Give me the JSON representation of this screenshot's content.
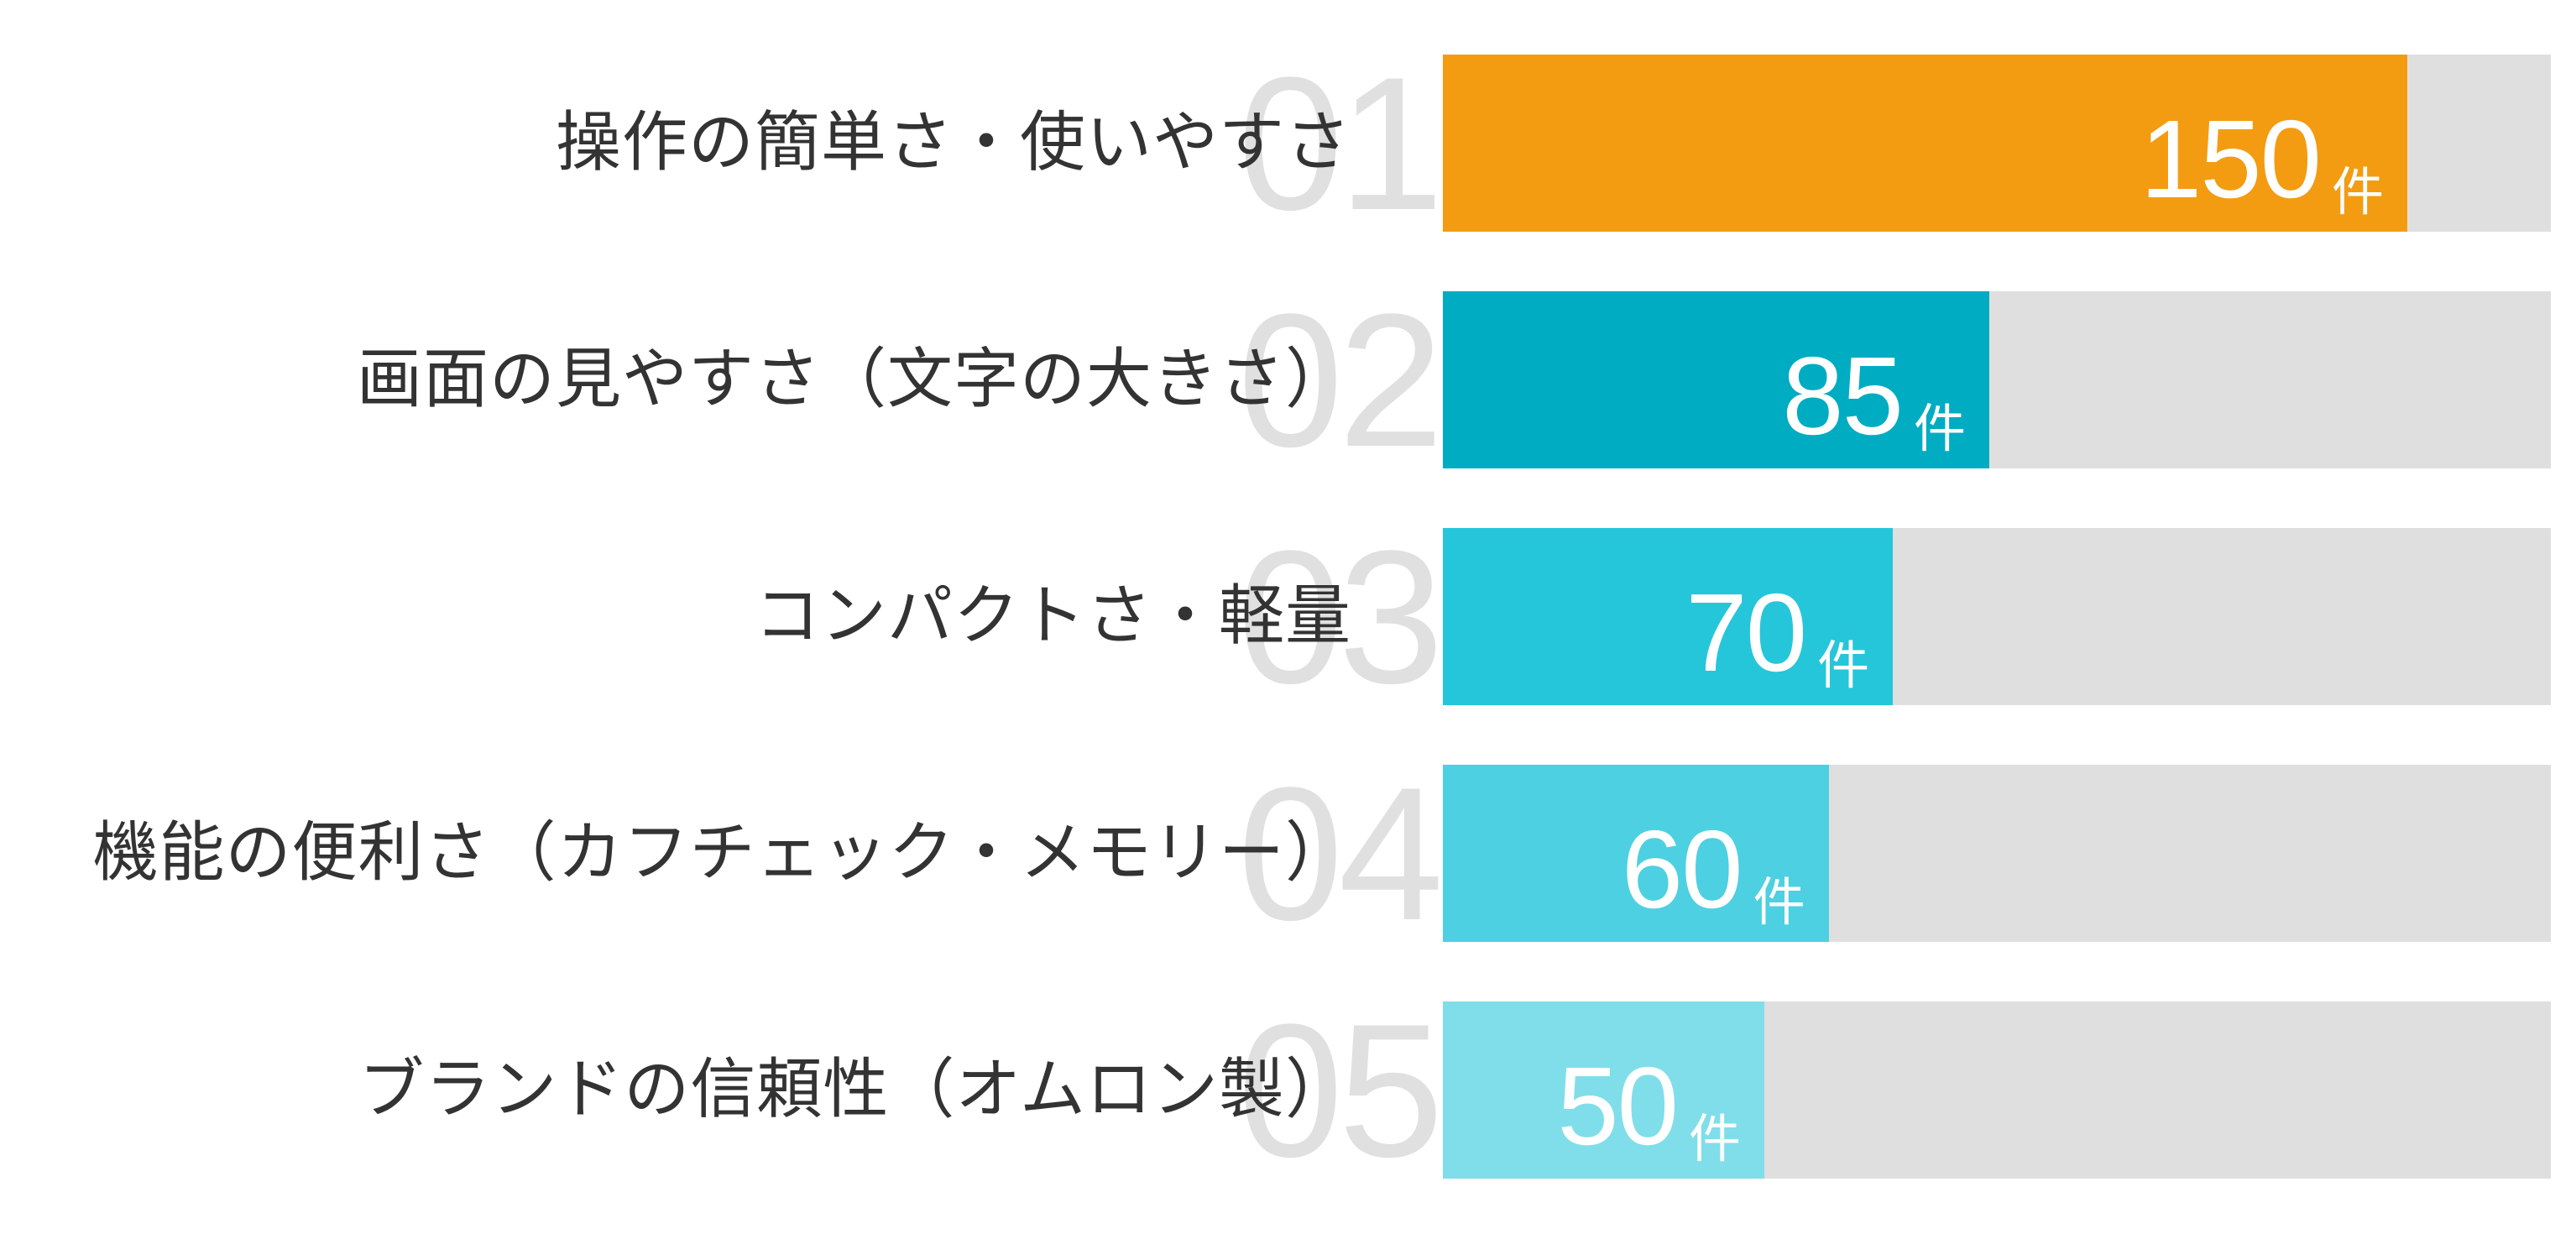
{
  "chart_data": {
    "type": "bar",
    "orientation": "horizontal",
    "title": "",
    "xlabel": "",
    "ylabel": "",
    "unit": "件",
    "xlim": [
      0,
      172.3
    ],
    "grid": false,
    "legend": null,
    "categories": [
      "操作の簡単さ・使いやすさ",
      "画面の見やすさ（文字の大きさ）",
      "コンパクトさ・軽量",
      "機能の便利さ（カフチェック・メモリー）",
      "ブランドの信頼性（オムロン製）"
    ],
    "ranks": [
      "01",
      "02",
      "03",
      "04",
      "05"
    ],
    "values": [
      150,
      85,
      70,
      60,
      50
    ],
    "colors": [
      "#F39C12",
      "#00ACC1",
      "#26C6DA",
      "#4DD0E1",
      "#80DEEA"
    ],
    "track_color": "#DFDFDF"
  },
  "rows": [
    {
      "rank": "01",
      "label": "操作の簡単さ・使いやすさ",
      "value": "150",
      "unit": "件",
      "pct": 87.05,
      "color": "#F39C12"
    },
    {
      "rank": "02",
      "label": "画面の見やすさ（文字の大きさ）",
      "value": "85",
      "unit": "件",
      "pct": 49.32,
      "color": "#00ACC1"
    },
    {
      "rank": "03",
      "label": "コンパクトさ・軽量",
      "value": "70",
      "unit": "件",
      "pct": 40.62,
      "color": "#26C6DA"
    },
    {
      "rank": "04",
      "label": "機能の便利さ（カフチェック・メモリー）",
      "value": "60",
      "unit": "件",
      "pct": 34.82,
      "color": "#4DD0E1"
    },
    {
      "rank": "05",
      "label": "ブランドの信頼性（オムロン製）",
      "value": "50",
      "unit": "件",
      "pct": 29.02,
      "color": "#80DEEA"
    }
  ]
}
